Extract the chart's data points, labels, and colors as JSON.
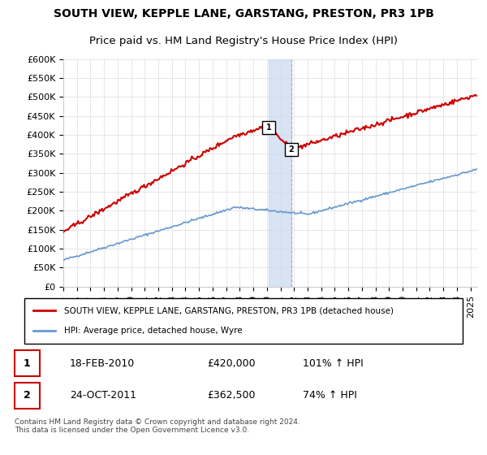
{
  "title": "SOUTH VIEW, KEPPLE LANE, GARSTANG, PRESTON, PR3 1PB",
  "subtitle": "Price paid vs. HM Land Registry's House Price Index (HPI)",
  "xlabel": "",
  "ylabel": "",
  "ylim": [
    0,
    600000
  ],
  "yticks": [
    0,
    50000,
    100000,
    150000,
    200000,
    250000,
    300000,
    350000,
    400000,
    450000,
    500000,
    550000,
    600000
  ],
  "xlim_start": 1995.0,
  "xlim_end": 2025.5,
  "transaction1_x": 2010.13,
  "transaction1_y": 420000,
  "transaction2_x": 2011.81,
  "transaction2_y": 362500,
  "shade_color": "#c8d8f0",
  "property_color": "#cc0000",
  "hpi_color": "#6699cc",
  "legend_text1": "SOUTH VIEW, KEPPLE LANE, GARSTANG, PRESTON, PR3 1PB (detached house)",
  "legend_text2": "HPI: Average price, detached house, Wyre",
  "table_row1": [
    "1",
    "18-FEB-2010",
    "£420,000",
    "101% ↑ HPI"
  ],
  "table_row2": [
    "2",
    "24-OCT-2011",
    "£362,500",
    "74% ↑ HPI"
  ],
  "footer": "Contains HM Land Registry data © Crown copyright and database right 2024.\nThis data is licensed under the Open Government Licence v3.0.",
  "title_fontsize": 10,
  "subtitle_fontsize": 9.5,
  "tick_fontsize": 8
}
